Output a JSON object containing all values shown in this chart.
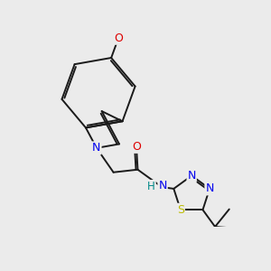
{
  "bg_color": "#ebebeb",
  "bond_color": "#1a1a1a",
  "bond_width": 1.4,
  "atom_colors": {
    "N": "#0000ee",
    "O": "#dd0000",
    "S": "#bbbb00",
    "H": "#008888",
    "C": "#1a1a1a"
  },
  "font_size": 8.5,
  "fig_size": [
    3.0,
    3.0
  ],
  "dpi": 100
}
